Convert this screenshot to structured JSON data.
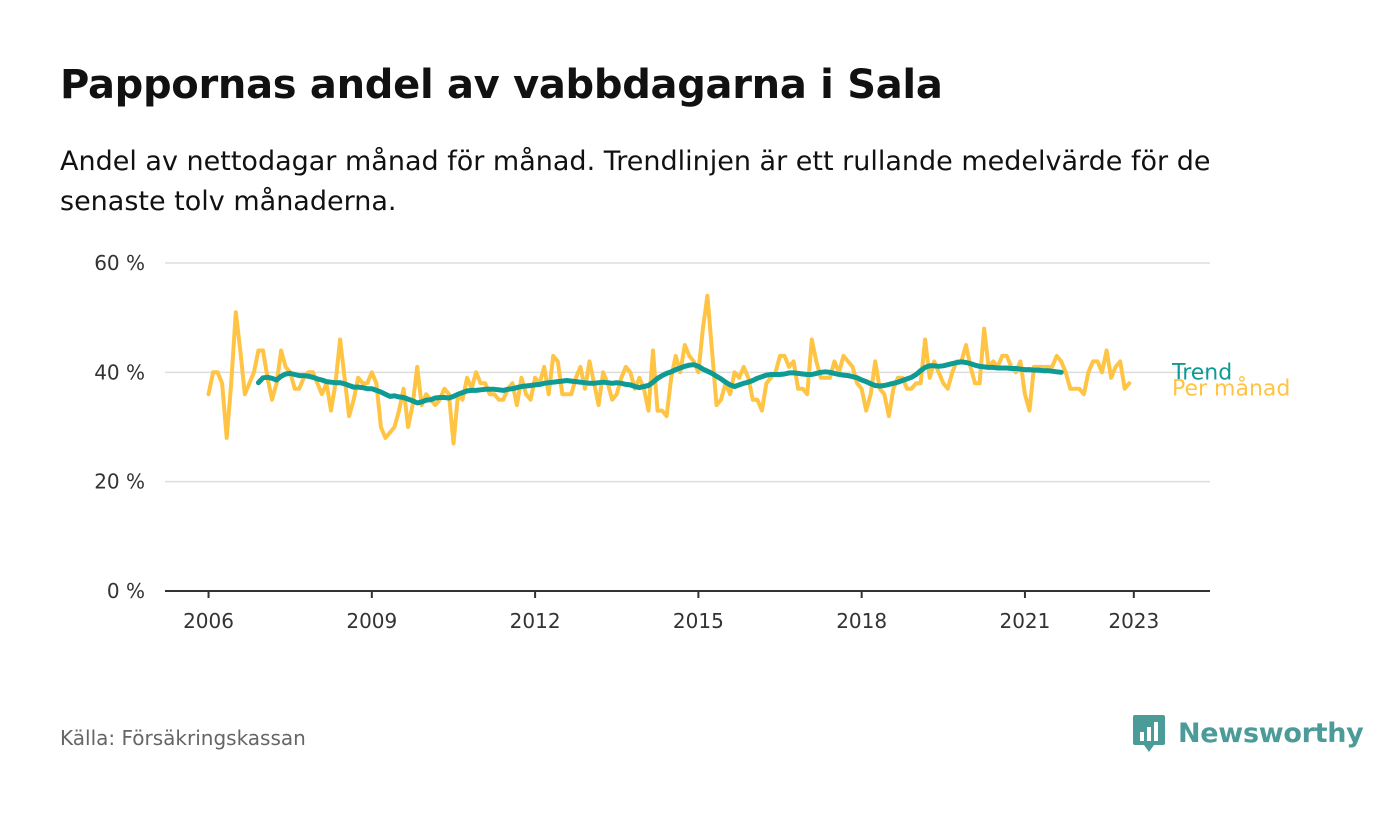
{
  "header": {
    "title": "Pappornas andel av vabbdagarna i Sala",
    "subtitle": "Andel av nettodagar månad för månad. Trendlinjen är ett rullande medelvärde för de senaste tolv månaderna."
  },
  "footer": {
    "source": "Källa: Försäkringskassan",
    "brand": "Newsworthy",
    "brand_color": "#4b9b98"
  },
  "chart_data": {
    "type": "line",
    "title": "Pappornas andel av vabbdagarna i Sala",
    "xlabel": "",
    "ylabel": "",
    "ylim": [
      0,
      60
    ],
    "xlim": [
      2005.2,
      2024.4
    ],
    "y_ticks": [
      0,
      20,
      40,
      60
    ],
    "y_tick_labels": [
      "0 %",
      "20 %",
      "40 %",
      "60 %"
    ],
    "x_ticks": [
      2006,
      2009,
      2012,
      2015,
      2018,
      2021,
      2023
    ],
    "x_tick_labels": [
      "2006",
      "2009",
      "2012",
      "2015",
      "2018",
      "2021",
      "2023"
    ],
    "grid": true,
    "series": [
      {
        "name": "Per månad",
        "color": "#ffc444",
        "x_start": 2006.0,
        "x_step": 0.08333,
        "values": [
          36,
          40,
          40,
          38,
          28,
          38,
          51,
          44,
          36,
          38,
          40,
          44,
          44,
          39,
          35,
          38,
          44,
          41,
          40,
          37,
          37,
          39,
          40,
          40,
          38,
          36,
          38,
          33,
          38,
          46,
          39,
          32,
          35,
          39,
          38,
          38,
          40,
          38,
          30,
          28,
          29,
          30,
          33,
          37,
          30,
          34,
          41,
          34,
          36,
          35,
          34,
          35,
          37,
          36,
          27,
          36,
          35,
          39,
          37,
          40,
          38,
          38,
          36,
          36,
          35,
          35,
          37,
          38,
          34,
          39,
          36,
          35,
          39,
          38,
          41,
          36,
          43,
          42,
          36,
          36,
          36,
          39,
          41,
          37,
          42,
          38,
          34,
          40,
          38,
          35,
          36,
          39,
          41,
          40,
          37,
          39,
          37,
          33,
          44,
          33,
          33,
          32,
          39,
          43,
          40,
          45,
          43,
          42,
          40,
          48,
          54,
          44,
          34,
          35,
          38,
          36,
          40,
          39,
          41,
          39,
          35,
          35,
          33,
          38,
          39,
          40,
          43,
          43,
          41,
          42,
          37,
          37,
          36,
          46,
          42,
          39,
          39,
          39,
          42,
          40,
          43,
          42,
          41,
          38,
          37,
          33,
          36,
          42,
          37,
          36,
          32,
          37,
          39,
          39,
          37,
          37,
          38,
          38,
          46,
          39,
          42,
          40,
          38,
          37,
          40,
          42,
          42,
          45,
          41,
          38,
          38,
          48,
          41,
          42,
          41,
          43,
          43,
          41,
          40,
          42,
          36,
          33,
          41,
          41,
          41,
          41,
          41,
          43,
          42,
          40,
          37,
          37,
          37,
          36,
          40,
          42,
          42,
          40,
          44,
          39,
          41,
          42,
          37,
          38
        ]
      },
      {
        "name": "Trend",
        "color": "#0f9a94",
        "x_start": 2006.9167,
        "x_step": 0.08333,
        "values": [
          38.1,
          39.0,
          39.1,
          38.9,
          38.6,
          39.3,
          39.7,
          39.8,
          39.6,
          39.4,
          39.4,
          39.3,
          39.1,
          38.8,
          38.6,
          38.3,
          38.2,
          38.1,
          38.1,
          37.9,
          37.6,
          37.3,
          37.3,
          37.2,
          37.0,
          37.0,
          36.7,
          36.4,
          36.0,
          35.6,
          35.7,
          35.5,
          35.4,
          35.1,
          34.8,
          34.4,
          34.6,
          34.9,
          35.0,
          35.3,
          35.4,
          35.4,
          35.3,
          35.6,
          36.0,
          36.3,
          36.6,
          36.7,
          36.7,
          36.8,
          36.9,
          36.9,
          36.9,
          36.8,
          36.7,
          36.9,
          37.0,
          37.2,
          37.4,
          37.5,
          37.6,
          37.7,
          37.8,
          38.0,
          38.1,
          38.2,
          38.3,
          38.4,
          38.5,
          38.4,
          38.3,
          38.2,
          38.1,
          38.0,
          38.0,
          38.1,
          38.2,
          38.1,
          38.0,
          38.1,
          38.0,
          37.8,
          37.7,
          37.4,
          37.2,
          37.4,
          37.6,
          38.2,
          38.9,
          39.4,
          39.8,
          40.1,
          40.5,
          40.8,
          41.1,
          41.3,
          41.4,
          41.1,
          40.6,
          40.2,
          39.8,
          39.3,
          38.8,
          38.2,
          37.7,
          37.4,
          37.7,
          38.0,
          38.2,
          38.5,
          38.9,
          39.2,
          39.5,
          39.6,
          39.6,
          39.6,
          39.7,
          39.9,
          39.9,
          39.8,
          39.7,
          39.6,
          39.6,
          39.8,
          40.0,
          40.1,
          40.0,
          39.8,
          39.6,
          39.5,
          39.4,
          39.2,
          39.0,
          38.6,
          38.3,
          37.9,
          37.6,
          37.5,
          37.6,
          37.8,
          38.0,
          38.2,
          38.5,
          38.8,
          39.1,
          39.6,
          40.3,
          40.9,
          41.2,
          41.2,
          41.1,
          41.2,
          41.4,
          41.6,
          41.8,
          41.9,
          41.8,
          41.6,
          41.3,
          41.1,
          41.0,
          40.9,
          40.9,
          40.8,
          40.8,
          40.8,
          40.7,
          40.7,
          40.6,
          40.5,
          40.5,
          40.4,
          40.4,
          40.3,
          40.3,
          40.2,
          40.1,
          40.0
        ]
      }
    ],
    "legend": "right, at line ends",
    "colors": {
      "grid": "#dddddd",
      "axis": "#333333",
      "tick_text": "#333333"
    }
  }
}
